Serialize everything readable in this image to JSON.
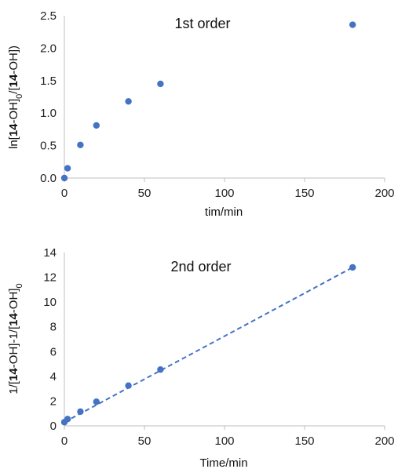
{
  "chart_data": [
    {
      "type": "scatter",
      "title": "1st order",
      "xlabel": "tim/min",
      "ylabel_parts": [
        {
          "t": "ln[",
          "b": false
        },
        {
          "t": "14",
          "b": true
        },
        {
          "t": "-OH]",
          "b": false
        },
        {
          "t": "0",
          "b": false,
          "sub": true
        },
        {
          "t": "/[",
          "b": false
        },
        {
          "t": "14",
          "b": true
        },
        {
          "t": "-OH])",
          "b": false
        }
      ],
      "xlim": [
        0,
        200
      ],
      "ylim": [
        0,
        2.5
      ],
      "xticks": [
        "0",
        "50",
        "100",
        "150",
        "200"
      ],
      "yticks": [
        "0.0",
        "0.5",
        "1.0",
        "1.5",
        "2.0",
        "2.5"
      ],
      "grid": false,
      "marker_color": "#4472c4",
      "series": [
        {
          "x": [
            0,
            2,
            10,
            20,
            40,
            60,
            180
          ],
          "y": [
            0.0,
            0.15,
            0.51,
            0.81,
            1.18,
            1.45,
            2.36
          ]
        }
      ]
    },
    {
      "type": "scatter",
      "title": "2nd order",
      "xlabel": "Time/min",
      "ylabel_parts": [
        {
          "t": "1/[",
          "b": false
        },
        {
          "t": "14",
          "b": true
        },
        {
          "t": "-OH]-1/[",
          "b": false
        },
        {
          "t": "14",
          "b": true
        },
        {
          "t": "-OH]",
          "b": false
        },
        {
          "t": "0",
          "b": false,
          "sub": true
        }
      ],
      "xlim": [
        0,
        200
      ],
      "ylim": [
        0,
        14
      ],
      "xticks": [
        "0",
        "50",
        "100",
        "150",
        "200"
      ],
      "yticks": [
        "0",
        "2",
        "4",
        "6",
        "8",
        "10",
        "12",
        "14"
      ],
      "grid": false,
      "marker_color": "#4472c4",
      "trendline": {
        "style": "dashed",
        "color": "#4472c4",
        "from": [
          0,
          0.3
        ],
        "to": [
          180,
          12.8
        ]
      },
      "series": [
        {
          "x": [
            0,
            2,
            10,
            20,
            40,
            60,
            180
          ],
          "y": [
            0.3,
            0.55,
            1.15,
            1.95,
            3.25,
            4.55,
            12.8
          ]
        }
      ]
    }
  ]
}
